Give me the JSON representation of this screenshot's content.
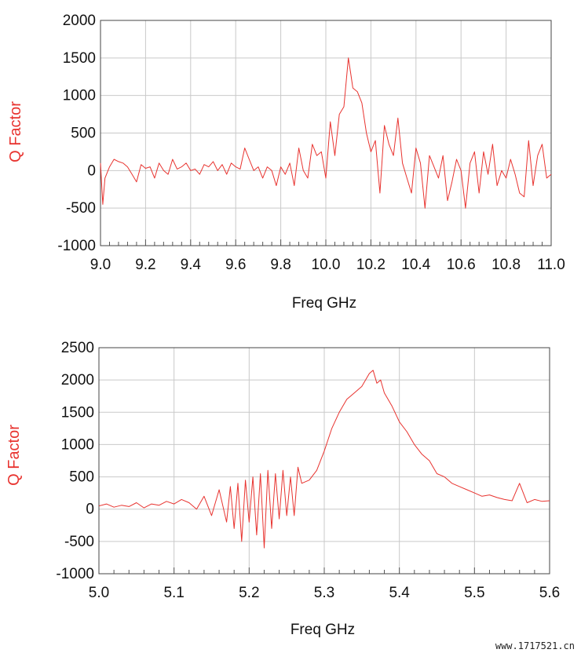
{
  "watermark": "www.1717521.cn",
  "chart_data": [
    {
      "type": "line",
      "xlabel": "Freq GHz",
      "ylabel": "Q Factor",
      "xlim": [
        9.0,
        11.0
      ],
      "ylim": [
        -1000,
        2000
      ],
      "xticks": [
        9.0,
        9.2,
        9.4,
        9.6,
        9.8,
        10.0,
        10.2,
        10.4,
        10.6,
        10.8,
        11.0
      ],
      "xtick_labels": [
        "9.0",
        "9.2",
        "9.4",
        "9.6",
        "9.8",
        "10.0",
        "10.2",
        "10.4",
        "10.6",
        "10.8",
        "11.0"
      ],
      "yticks": [
        -1000,
        -500,
        0,
        500,
        1000,
        1500,
        2000
      ],
      "ytick_labels": [
        "-1000",
        "-500",
        "0",
        "500",
        "1000",
        "1500",
        "2000"
      ],
      "grid": true,
      "line_color": "#e8332f",
      "series": [
        {
          "x": [
            9.0,
            9.01,
            9.02,
            9.04,
            9.06,
            9.08,
            9.1,
            9.12,
            9.14,
            9.16,
            9.18,
            9.2,
            9.22,
            9.24,
            9.26,
            9.28,
            9.3,
            9.32,
            9.34,
            9.36,
            9.38,
            9.4,
            9.42,
            9.44,
            9.46,
            9.48,
            9.5,
            9.52,
            9.54,
            9.56,
            9.58,
            9.6,
            9.62,
            9.64,
            9.66,
            9.68,
            9.7,
            9.72,
            9.74,
            9.76,
            9.78,
            9.8,
            9.82,
            9.84,
            9.86,
            9.88,
            9.9,
            9.92,
            9.94,
            9.96,
            9.98,
            10.0,
            10.02,
            10.04,
            10.06,
            10.08,
            10.1,
            10.11,
            10.12,
            10.14,
            10.16,
            10.18,
            10.2,
            10.22,
            10.24,
            10.26,
            10.28,
            10.3,
            10.32,
            10.34,
            10.36,
            10.38,
            10.4,
            10.42,
            10.44,
            10.46,
            10.48,
            10.5,
            10.52,
            10.54,
            10.56,
            10.58,
            10.6,
            10.62,
            10.64,
            10.66,
            10.68,
            10.7,
            10.72,
            10.74,
            10.76,
            10.78,
            10.8,
            10.82,
            10.84,
            10.86,
            10.88,
            10.9,
            10.92,
            10.94,
            10.96,
            10.98,
            11.0
          ],
          "y": [
            100,
            -450,
            -100,
            50,
            150,
            120,
            100,
            50,
            -50,
            -150,
            80,
            30,
            50,
            -100,
            100,
            0,
            -50,
            150,
            20,
            50,
            100,
            0,
            20,
            -50,
            80,
            50,
            120,
            0,
            80,
            -50,
            100,
            50,
            20,
            300,
            150,
            0,
            50,
            -100,
            50,
            0,
            -200,
            50,
            -50,
            100,
            -200,
            300,
            0,
            -100,
            350,
            200,
            250,
            -100,
            650,
            200,
            750,
            850,
            1500,
            1300,
            1100,
            1050,
            900,
            500,
            250,
            400,
            -300,
            600,
            350,
            200,
            700,
            100,
            -100,
            -300,
            300,
            100,
            -500,
            200,
            50,
            -100,
            200,
            -400,
            -150,
            150,
            0,
            -500,
            100,
            250,
            -300,
            250,
            -50,
            350,
            -200,
            0,
            -100,
            150,
            -50,
            -300,
            -350,
            400,
            -200,
            200,
            350,
            -100,
            -50
          ]
        }
      ]
    },
    {
      "type": "line",
      "xlabel": "Freq GHz",
      "ylabel": "Q Factor",
      "xlim": [
        5.0,
        5.6
      ],
      "ylim": [
        -1000,
        2500
      ],
      "xticks": [
        5.0,
        5.1,
        5.2,
        5.3,
        5.4,
        5.5,
        5.6
      ],
      "xtick_labels": [
        "5.0",
        "5.1",
        "5.2",
        "5.3",
        "5.4",
        "5.5",
        "5.6"
      ],
      "yticks": [
        -1000,
        -500,
        0,
        500,
        1000,
        1500,
        2000,
        2500
      ],
      "ytick_labels": [
        "-1000",
        "-500",
        "0",
        "500",
        "1000",
        "1500",
        "2000",
        "2500"
      ],
      "grid": true,
      "line_color": "#e8332f",
      "series": [
        {
          "x": [
            5.0,
            5.01,
            5.02,
            5.03,
            5.04,
            5.05,
            5.06,
            5.07,
            5.08,
            5.09,
            5.1,
            5.11,
            5.12,
            5.13,
            5.14,
            5.15,
            5.16,
            5.17,
            5.175,
            5.18,
            5.185,
            5.19,
            5.195,
            5.2,
            5.205,
            5.21,
            5.215,
            5.22,
            5.225,
            5.23,
            5.235,
            5.24,
            5.245,
            5.25,
            5.255,
            5.26,
            5.265,
            5.27,
            5.28,
            5.29,
            5.3,
            5.31,
            5.32,
            5.33,
            5.34,
            5.35,
            5.36,
            5.365,
            5.37,
            5.375,
            5.38,
            5.39,
            5.4,
            5.41,
            5.42,
            5.43,
            5.44,
            5.45,
            5.46,
            5.47,
            5.48,
            5.49,
            5.5,
            5.51,
            5.52,
            5.53,
            5.54,
            5.55,
            5.56,
            5.57,
            5.58,
            5.59,
            5.6
          ],
          "y": [
            50,
            80,
            30,
            60,
            40,
            100,
            20,
            80,
            60,
            120,
            80,
            150,
            100,
            0,
            200,
            -100,
            300,
            -200,
            350,
            -300,
            400,
            -500,
            450,
            -200,
            500,
            -400,
            550,
            -600,
            600,
            -300,
            550,
            -150,
            600,
            -100,
            500,
            -100,
            650,
            400,
            450,
            600,
            900,
            1250,
            1500,
            1700,
            1800,
            1900,
            2100,
            2150,
            1950,
            2000,
            1800,
            1600,
            1350,
            1200,
            1000,
            850,
            750,
            550,
            500,
            400,
            350,
            300,
            250,
            200,
            220,
            180,
            150,
            130,
            400,
            100,
            150,
            120,
            130
          ]
        }
      ]
    }
  ]
}
